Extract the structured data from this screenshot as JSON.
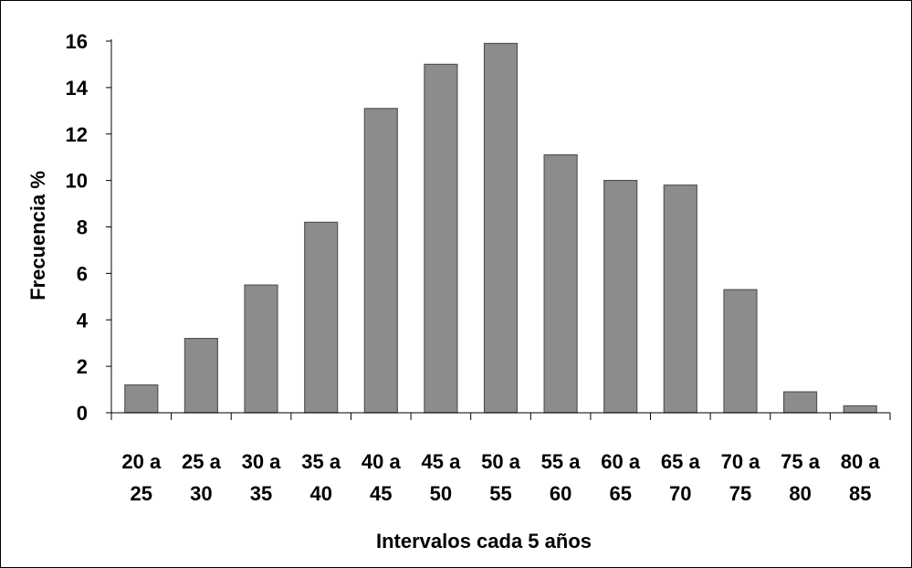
{
  "chart_data": {
    "type": "bar",
    "categories": [
      [
        "20 a",
        "25"
      ],
      [
        "25 a",
        "30"
      ],
      [
        "30 a",
        "35"
      ],
      [
        "35 a",
        "40"
      ],
      [
        "40 a",
        "45"
      ],
      [
        "45 a",
        "50"
      ],
      [
        "50 a",
        "55"
      ],
      [
        "55 a",
        "60"
      ],
      [
        "60 a",
        "65"
      ],
      [
        "65 a",
        "70"
      ],
      [
        "70 a",
        "75"
      ],
      [
        "75 a",
        "80"
      ],
      [
        "80 a",
        "85"
      ]
    ],
    "values": [
      1.2,
      3.2,
      5.5,
      8.2,
      13.1,
      15.0,
      15.9,
      11.1,
      10.0,
      9.8,
      5.3,
      0.9,
      0.3
    ],
    "xlabel": "Intervalos cada 5 años",
    "ylabel": "Frecuencia %",
    "ylim": [
      0,
      16
    ],
    "yticks": [
      0,
      2,
      4,
      6,
      8,
      10,
      12,
      14,
      16
    ],
    "grid": false,
    "bar_color": "#8c8c8c",
    "bar_edge_color": "#555555"
  }
}
